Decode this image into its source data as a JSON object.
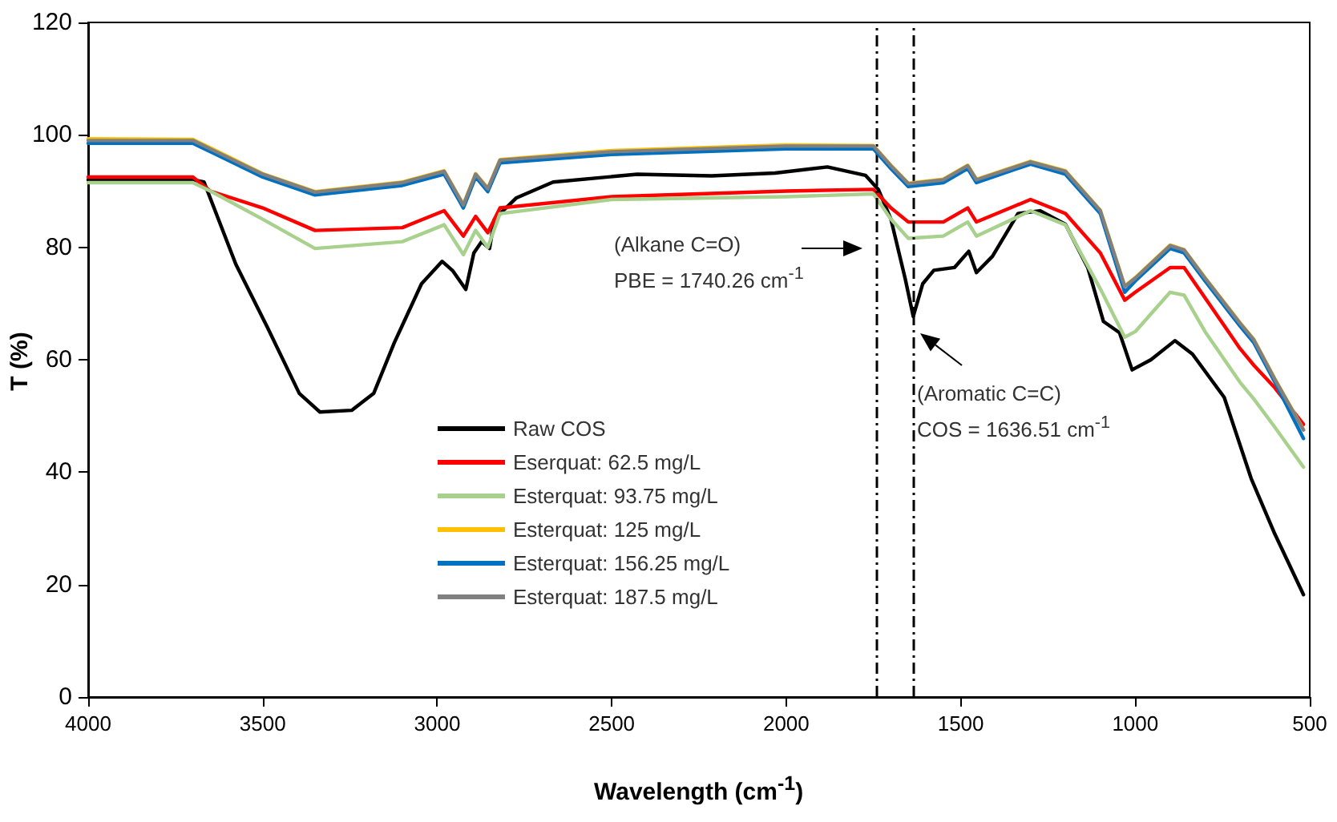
{
  "chart_data": {
    "type": "line",
    "xlabel": "Wavelength (cm$^{-1}$)",
    "ylabel": "T (%)",
    "xlim": [
      4000,
      500
    ],
    "xticks": [
      4000,
      3500,
      3000,
      2500,
      2000,
      1500,
      1000,
      500
    ],
    "ylim": [
      0,
      120
    ],
    "yticks": [
      0,
      20,
      40,
      60,
      80,
      100,
      120
    ],
    "grid": false,
    "legend": "bottom left",
    "marker": "none",
    "line_style": "solid",
    "ref_lines": [
      {
        "axis": "x",
        "value": 1740.26,
        "color": "#000000",
        "line_style": "dashed"
      },
      {
        "axis": "x",
        "value": 1636.51,
        "color": "#000000",
        "line_style": "dashed"
      }
    ],
    "annotations": [
      "(Alkane C=O)\nPBE = 1740.26 cm$^{-1}$",
      "(Aromatic C=C)\nCOS = 1636.51 cm$^{-1}$"
    ],
    "series": [
      {
        "name": "Raw COS",
        "color": "#000000",
        "x": [
          4000,
          3800,
          3700,
          3668,
          3577,
          3486,
          3395,
          3336,
          3245,
          3182,
          3123,
          3045,
          2986,
          2955,
          2918,
          2895,
          2873,
          2850,
          2836,
          2773,
          2668,
          2427,
          2214,
          2032,
          1882,
          1773,
          1736,
          1700,
          1659,
          1636,
          1609,
          1577,
          1518,
          1477,
          1455,
          1409,
          1336,
          1273,
          1200,
          1136,
          1091,
          1045,
          1009,
          955,
          886,
          836,
          745,
          668,
          600,
          518
        ],
        "values": [
          92,
          92,
          92,
          91.6,
          77,
          65.7,
          54,
          50.7,
          51,
          54,
          63,
          73.5,
          77.5,
          75.8,
          72.5,
          79,
          81,
          79.8,
          85,
          88.8,
          91.6,
          93,
          92.7,
          93.2,
          94.3,
          92.8,
          90.3,
          85,
          74.4,
          67.7,
          73.5,
          75.9,
          76.4,
          79.3,
          75.5,
          78.4,
          86,
          86.5,
          84.1,
          76.4,
          66.8,
          64.8,
          58.2,
          60,
          63.4,
          61,
          53.3,
          38.9,
          29,
          18.2
        ]
      },
      {
        "name": "Eserquat: 62.5 mg/L",
        "color": "#ff0000",
        "x": [
          4000,
          3700,
          3650,
          3500,
          3350,
          3100,
          2980,
          2925,
          2890,
          2855,
          2820,
          2500,
          2000,
          1750,
          1700,
          1650,
          1550,
          1480,
          1455,
          1300,
          1200,
          1100,
          1030,
          1000,
          900,
          860,
          800,
          700,
          660,
          600,
          518
        ],
        "values": [
          92.5,
          92.5,
          90,
          87,
          83,
          83.5,
          86.5,
          82,
          85.5,
          82.6,
          87,
          89,
          90,
          90.3,
          87,
          84.5,
          84.5,
          87,
          84.5,
          88.5,
          86,
          79,
          70.6,
          72,
          76.4,
          76.4,
          71,
          62,
          59,
          55,
          48.5
        ]
      },
      {
        "name": "Esterquat: 93.75 mg/L",
        "color": "#a9d18e",
        "x": [
          4000,
          3700,
          3650,
          3500,
          3350,
          3100,
          2980,
          2925,
          2890,
          2855,
          2820,
          2500,
          2000,
          1750,
          1700,
          1650,
          1550,
          1480,
          1455,
          1300,
          1200,
          1100,
          1030,
          1000,
          900,
          860,
          800,
          700,
          660,
          600,
          518
        ],
        "values": [
          91.5,
          91.5,
          90,
          85,
          79.8,
          81,
          84,
          78.7,
          83,
          80,
          86,
          88.5,
          89,
          89.5,
          85,
          81.6,
          82,
          84.5,
          82,
          86.5,
          84,
          72.6,
          64,
          65,
          72,
          71.5,
          65,
          56,
          53,
          48,
          40.9
        ]
      },
      {
        "name": "Esterquat: 125 mg/L",
        "color": "#ffc000",
        "x": [
          4000,
          3700,
          3650,
          3500,
          3350,
          3100,
          2980,
          2925,
          2890,
          2855,
          2820,
          2500,
          2000,
          1750,
          1700,
          1650,
          1550,
          1480,
          1455,
          1300,
          1200,
          1100,
          1030,
          1000,
          900,
          860,
          800,
          700,
          660,
          600,
          518
        ],
        "values": [
          99.3,
          99.2,
          97.7,
          93.1,
          89.9,
          91.6,
          93.6,
          87.6,
          93.1,
          90.5,
          95.6,
          97.2,
          98.2,
          98.1,
          94.6,
          91.4,
          92.1,
          94.6,
          92.1,
          95.3,
          93.6,
          86.6,
          73.1,
          74.6,
          80.4,
          79.6,
          74.6,
          66.6,
          63.6,
          56.6,
          47.6
        ]
      },
      {
        "name": "Esterquat: 156.25 mg/L",
        "color": "#0070c0",
        "x": [
          4000,
          3700,
          3650,
          3500,
          3350,
          3100,
          2980,
          2925,
          2890,
          2855,
          2820,
          2500,
          2000,
          1750,
          1700,
          1650,
          1550,
          1480,
          1455,
          1300,
          1200,
          1100,
          1030,
          1000,
          900,
          860,
          800,
          700,
          660,
          600,
          518
        ],
        "values": [
          98.5,
          98.5,
          97,
          92.5,
          89.3,
          91,
          93,
          87,
          92.5,
          89.9,
          95,
          96.5,
          97.5,
          97.5,
          94,
          90.8,
          91.5,
          94,
          91.5,
          94.8,
          93,
          86,
          72,
          74,
          79.8,
          79,
          74,
          66,
          63,
          56,
          46
        ]
      },
      {
        "name": "Esterquat: 187.5 mg/L",
        "color": "#808080",
        "x": [
          4000,
          3700,
          3650,
          3500,
          3350,
          3100,
          2980,
          2925,
          2890,
          2855,
          2820,
          2500,
          2000,
          1750,
          1700,
          1650,
          1550,
          1480,
          1455,
          1300,
          1200,
          1100,
          1030,
          1000,
          900,
          860,
          800,
          700,
          660,
          600,
          518
        ],
        "values": [
          99,
          99,
          97.5,
          93,
          89.8,
          91.5,
          93.5,
          87.5,
          93,
          90.4,
          95.5,
          97,
          98,
          98,
          94.5,
          91.3,
          92,
          94.5,
          92,
          95.2,
          93.5,
          86.5,
          73,
          74.5,
          80.3,
          79.5,
          74.5,
          66.5,
          63.5,
          56.5,
          47.5
        ]
      }
    ]
  }
}
